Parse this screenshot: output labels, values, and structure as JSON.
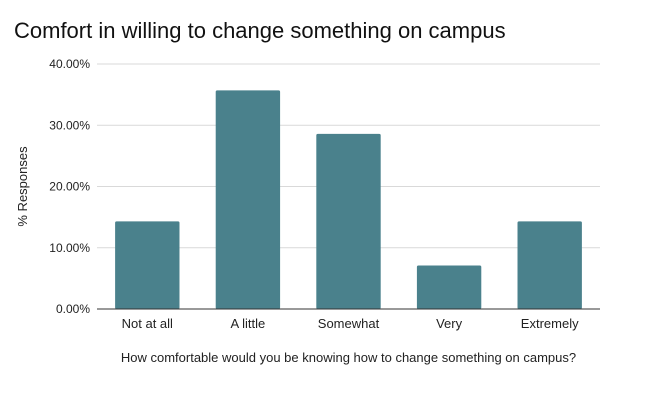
{
  "chart_data": {
    "type": "bar",
    "title": "Comfort in willing to change something on campus",
    "xlabel": "How comfortable would you be knowing how to change something on campus?",
    "ylabel": "% Responses",
    "categories": [
      "Not at all",
      "A little",
      "Somewhat",
      "Very",
      "Extremely"
    ],
    "values": [
      14.3,
      35.7,
      28.6,
      7.1,
      14.3
    ],
    "ylim": [
      0,
      40
    ],
    "yticks": [
      "0.00%",
      "10.00%",
      "20.00%",
      "30.00%",
      "40.00%"
    ],
    "ytick_values": [
      0,
      10,
      20,
      30,
      40
    ],
    "grid": true,
    "legend": "none",
    "colors": {
      "bar": "#4a818c",
      "grid": "#d9d9d9",
      "axis": "#333333"
    }
  }
}
